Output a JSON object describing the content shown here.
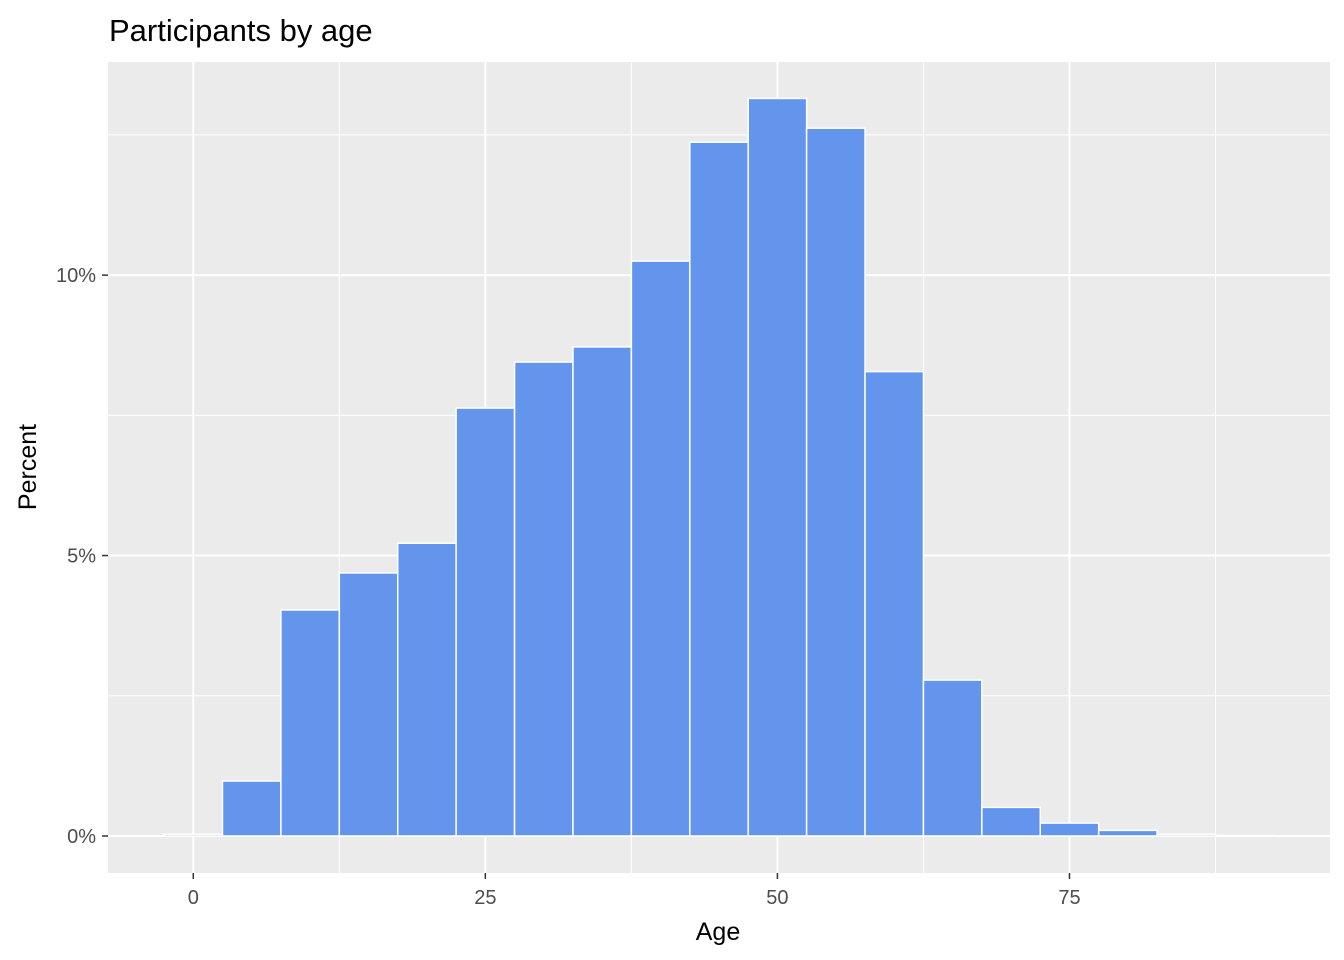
{
  "chart_data": {
    "type": "bar",
    "title": "Participants by age",
    "xlabel": "Age",
    "ylabel": "Percent",
    "bin_width": 5,
    "bins": [
      {
        "x": 0,
        "value": 0.03
      },
      {
        "x": 5,
        "value": 0.98
      },
      {
        "x": 10,
        "value": 4.03
      },
      {
        "x": 15,
        "value": 4.69
      },
      {
        "x": 20,
        "value": 5.22
      },
      {
        "x": 25,
        "value": 7.63
      },
      {
        "x": 30,
        "value": 8.45
      },
      {
        "x": 35,
        "value": 8.72
      },
      {
        "x": 40,
        "value": 10.25
      },
      {
        "x": 45,
        "value": 12.37
      },
      {
        "x": 50,
        "value": 13.15
      },
      {
        "x": 55,
        "value": 12.62
      },
      {
        "x": 60,
        "value": 8.28
      },
      {
        "x": 65,
        "value": 2.78
      },
      {
        "x": 70,
        "value": 0.51
      },
      {
        "x": 75,
        "value": 0.23
      },
      {
        "x": 80,
        "value": 0.1
      },
      {
        "x": 85,
        "value": 0.03
      },
      {
        "x": 90,
        "value": 0.01
      }
    ],
    "xlim": [
      -7.3,
      97.3
    ],
    "ylim": [
      -0.66,
      13.8
    ],
    "x_ticks": [
      0,
      25,
      50,
      75
    ],
    "x_tick_labels": [
      "0",
      "25",
      "50",
      "75"
    ],
    "y_ticks": [
      0,
      5,
      10
    ],
    "y_tick_labels": [
      "0%",
      "5%",
      "10%"
    ],
    "grid": true,
    "legend": "none",
    "colors": {
      "bar_fill": "#6495ED",
      "bar_outline": "#ffffff",
      "panel_background": "#EBEBEB",
      "gridline": "#ffffff"
    }
  }
}
